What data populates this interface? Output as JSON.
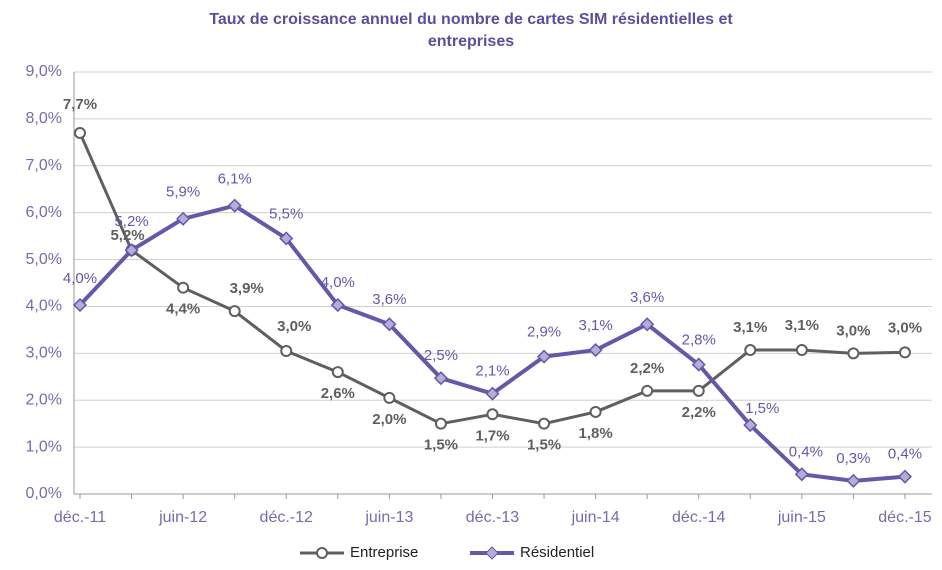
{
  "chart_data": {
    "type": "line",
    "title": "Taux de croissance annuel du nombre de cartes SIM résidentielles et entreprises",
    "categories": [
      "déc.-11",
      null,
      "juin-12",
      null,
      "déc.-12",
      null,
      "juin-13",
      null,
      "déc.-13",
      null,
      "juin-14",
      null,
      "déc.-14",
      null,
      "juin-15",
      null,
      "déc.-15"
    ],
    "series": [
      {
        "name": "Entreprise",
        "color": "#5f5f5f",
        "values": [
          7.7,
          5.2,
          4.4,
          3.9,
          3.05,
          2.6,
          2.05,
          1.5,
          1.7,
          1.5,
          1.75,
          2.2,
          2.2,
          3.07,
          3.07,
          3.0,
          3.02
        ],
        "value_labels": [
          "7,7%",
          "5,2%",
          "4,4%",
          "3,9%",
          "3,0%",
          "2,6%",
          "2,0%",
          "1,5%",
          "1,7%",
          "1,5%",
          "1,8%",
          "2,2%",
          "2,2%",
          "3,1%",
          "3,1%",
          "3,0%",
          "3,0%"
        ]
      },
      {
        "name": "Résidentiel",
        "color": "#6757a8",
        "values": [
          4.03,
          5.2,
          5.87,
          6.15,
          5.45,
          4.03,
          3.62,
          2.47,
          2.14,
          2.93,
          3.07,
          3.62,
          2.76,
          1.47,
          0.42,
          0.28,
          0.37
        ],
        "value_labels": [
          "4,0%",
          "5,2%",
          "5,9%",
          "6,1%",
          "5,5%",
          "4,0%",
          "3,6%",
          "2,5%",
          "2,1%",
          "2,9%",
          "3,1%",
          "3,6%",
          "2,8%",
          "1,5%",
          "0,4%",
          "0,3%",
          "0,4%"
        ]
      }
    ],
    "ylim": [
      0,
      9
    ],
    "yticks": [
      {
        "value": 0,
        "label": "0,0%"
      },
      {
        "value": 1,
        "label": "1,0%"
      },
      {
        "value": 2,
        "label": "2,0%"
      },
      {
        "value": 3,
        "label": "3,0%"
      },
      {
        "value": 4,
        "label": "4,0%"
      },
      {
        "value": 5,
        "label": "5,0%"
      },
      {
        "value": 6,
        "label": "6,0%"
      },
      {
        "value": 7,
        "label": "7,0%"
      },
      {
        "value": 8,
        "label": "8,0%"
      },
      {
        "value": 9,
        "label": "9,0%"
      }
    ],
    "grid": true,
    "legend": "bottom"
  }
}
